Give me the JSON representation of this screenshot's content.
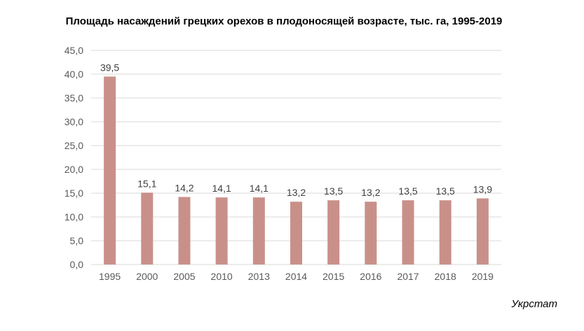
{
  "chart_data": {
    "type": "bar",
    "title": "Площадь насаждений грецких орехов в плодоносящей возрасте, тыс. га, 1995-2019",
    "categories": [
      "1995",
      "2000",
      "2005",
      "2010",
      "2013",
      "2014",
      "2015",
      "2016",
      "2017",
      "2018",
      "2019"
    ],
    "values": [
      39.5,
      15.1,
      14.2,
      14.1,
      14.1,
      13.2,
      13.5,
      13.2,
      13.5,
      13.5,
      13.9
    ],
    "value_labels": [
      "39,5",
      "15,1",
      "14,2",
      "14,1",
      "14,1",
      "13,2",
      "13,5",
      "13,2",
      "13,5",
      "13,5",
      "13,9"
    ],
    "y_ticks": [
      "0,0",
      "5,0",
      "10,0",
      "15,0",
      "20,0",
      "25,0",
      "30,0",
      "35,0",
      "40,0",
      "45,0"
    ],
    "ylim": [
      0,
      45
    ],
    "y_step": 5,
    "grid": true,
    "legend": "none",
    "bar_color": "#c9908a",
    "grid_color": "#d9d9d9"
  },
  "source": "Укрстат"
}
